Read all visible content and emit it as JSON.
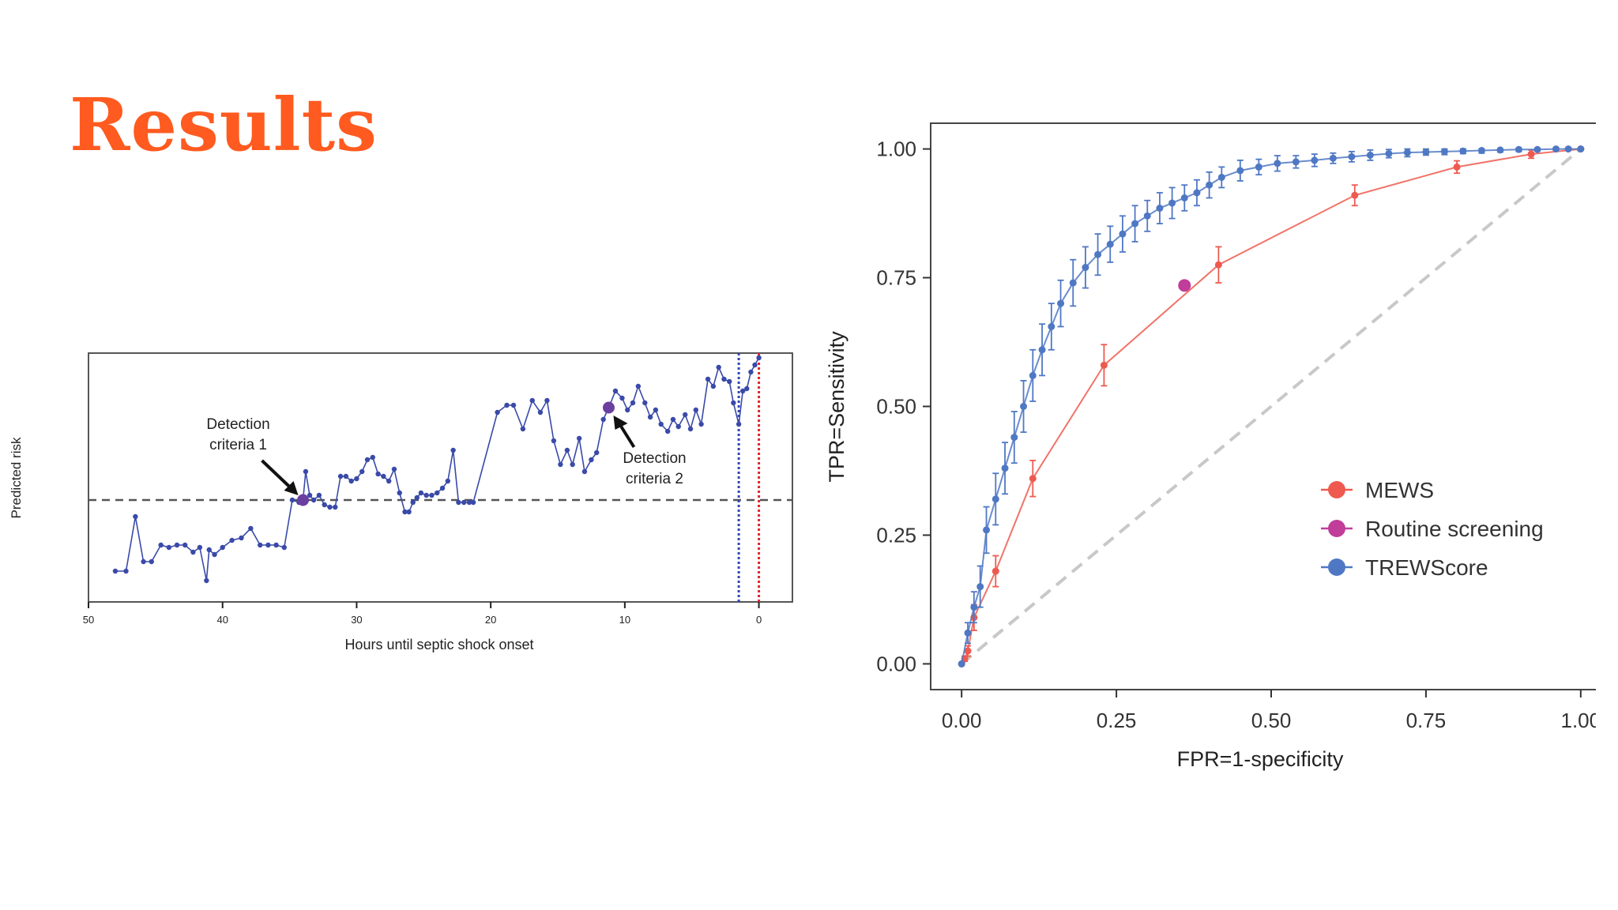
{
  "slide": {
    "title": "Results"
  },
  "colors": {
    "title": "#ff5a1f",
    "risk_line": "#3a4aa8",
    "detection_point": "#6b3fa0",
    "threshold": "#555555",
    "onset_blue": "#2f49b3",
    "onset_red": "#e0262a",
    "mews": "#ee5a4f",
    "routine": "#c13d9a",
    "trews": "#4f78c4",
    "diagonal": "#c8c8c8"
  },
  "chart_data": [
    {
      "type": "line",
      "title": "",
      "xlabel": "Hours until septic shock onset",
      "ylabel": "Predicted risk",
      "xlim": [
        50,
        -2.5
      ],
      "ylim": [
        0,
        1
      ],
      "xticks": [
        50,
        40,
        30,
        20,
        10,
        0
      ],
      "xtick_labels": [
        "50",
        "40",
        "30",
        "20",
        "10",
        "0"
      ],
      "threshold": 0.38,
      "onset_lines": [
        1.5,
        0
      ],
      "annotations": [
        {
          "text_lines": [
            "Detection",
            "criteria 1"
          ],
          "x": 34,
          "y": 0.38
        },
        {
          "text_lines": [
            "Detection",
            "criteria 2"
          ],
          "x": 11.2,
          "y": 0.77
        }
      ],
      "series": [
        {
          "name": "Predicted risk",
          "x": [
            48,
            47.2,
            46.5,
            45.9,
            45.3,
            44.6,
            44.0,
            43.4,
            42.8,
            42.2,
            41.7,
            41.2,
            41.0,
            40.6,
            40.0,
            39.3,
            38.6,
            37.9,
            37.2,
            36.6,
            36.0,
            35.4,
            34.8,
            34.3,
            34.0,
            33.8,
            33.5,
            33.2,
            32.8,
            32.4,
            32.0,
            31.6,
            31.2,
            30.8,
            30.4,
            30.0,
            29.6,
            29.2,
            28.8,
            28.4,
            28.0,
            27.6,
            27.2,
            26.8,
            26.4,
            26.1,
            25.8,
            25.5,
            25.2,
            24.8,
            24.4,
            24.0,
            23.6,
            23.2,
            22.8,
            22.4,
            22.0,
            21.6,
            21.3,
            19.5,
            18.8,
            18.3,
            17.6,
            16.9,
            16.3,
            15.8,
            15.3,
            14.8,
            14.3,
            13.9,
            13.4,
            13.0,
            12.5,
            12.1,
            11.6,
            11.2,
            10.7,
            10.2,
            9.8,
            9.4,
            9.0,
            8.5,
            8.1,
            7.7,
            7.3,
            6.8,
            6.4,
            6.0,
            5.5,
            5.1,
            4.7,
            4.3,
            3.8,
            3.4,
            3.0,
            2.6,
            2.2,
            1.9,
            1.5,
            1.2,
            0.9,
            0.6,
            0.3,
            0.0
          ],
          "y": [
            0.08,
            0.08,
            0.31,
            0.12,
            0.12,
            0.19,
            0.18,
            0.19,
            0.19,
            0.16,
            0.18,
            0.04,
            0.17,
            0.15,
            0.18,
            0.21,
            0.22,
            0.26,
            0.19,
            0.19,
            0.19,
            0.18,
            0.38,
            0.37,
            0.38,
            0.5,
            0.4,
            0.38,
            0.4,
            0.36,
            0.35,
            0.35,
            0.48,
            0.48,
            0.46,
            0.47,
            0.5,
            0.55,
            0.56,
            0.49,
            0.48,
            0.46,
            0.51,
            0.41,
            0.33,
            0.33,
            0.37,
            0.39,
            0.41,
            0.4,
            0.4,
            0.41,
            0.43,
            0.46,
            0.59,
            0.37,
            0.37,
            0.37,
            0.37,
            0.75,
            0.78,
            0.78,
            0.68,
            0.8,
            0.75,
            0.8,
            0.63,
            0.53,
            0.59,
            0.53,
            0.64,
            0.5,
            0.55,
            0.58,
            0.72,
            0.77,
            0.84,
            0.81,
            0.76,
            0.79,
            0.86,
            0.79,
            0.73,
            0.76,
            0.7,
            0.67,
            0.72,
            0.69,
            0.74,
            0.68,
            0.76,
            0.7,
            0.89,
            0.86,
            0.94,
            0.89,
            0.88,
            0.79,
            0.7,
            0.84,
            0.85,
            0.92,
            0.95,
            0.98
          ]
        }
      ],
      "highlights": [
        {
          "x": 34,
          "y": 0.38
        },
        {
          "x": 11.2,
          "y": 0.77
        }
      ]
    },
    {
      "type": "line",
      "title": "",
      "xlabel": "FPR=1-specificity",
      "ylabel": "TPR=Sensitivity",
      "xlim": [
        -0.05,
        1.05
      ],
      "ylim": [
        -0.05,
        1.05
      ],
      "xticks": [
        0,
        0.25,
        0.5,
        0.75,
        1
      ],
      "yticks": [
        0,
        0.25,
        0.5,
        0.75,
        1
      ],
      "xtick_labels": [
        "0.00",
        "0.25",
        "0.50",
        "0.75",
        "1.00"
      ],
      "ytick_labels": [
        "0.00",
        "0.25",
        "0.50",
        "0.75",
        "1.00"
      ],
      "legend_position": "bottom-right",
      "legend": [
        "MEWS",
        "Routine screening",
        "TREWScore"
      ],
      "diagonal": [
        [
          0,
          0
        ],
        [
          1,
          1
        ]
      ],
      "series": [
        {
          "name": "MEWS",
          "x": [
            0,
            0.005,
            0.01,
            0.02,
            0.055,
            0.115,
            0.23,
            0.415,
            0.635,
            0.8,
            0.92,
            1.0
          ],
          "y": [
            0,
            0.01,
            0.025,
            0.09,
            0.18,
            0.36,
            0.58,
            0.775,
            0.91,
            0.965,
            0.99,
            1.0
          ],
          "err": [
            0,
            0.005,
            0.01,
            0.025,
            0.03,
            0.035,
            0.04,
            0.035,
            0.02,
            0.012,
            0.008,
            0
          ]
        },
        {
          "name": "Routine screening",
          "x": [
            0.36
          ],
          "y": [
            0.735
          ]
        },
        {
          "name": "TREWScore",
          "x": [
            0,
            0.01,
            0.02,
            0.03,
            0.04,
            0.055,
            0.07,
            0.085,
            0.1,
            0.115,
            0.13,
            0.145,
            0.16,
            0.18,
            0.2,
            0.22,
            0.24,
            0.26,
            0.28,
            0.3,
            0.32,
            0.34,
            0.36,
            0.38,
            0.4,
            0.42,
            0.45,
            0.48,
            0.51,
            0.54,
            0.57,
            0.6,
            0.63,
            0.66,
            0.69,
            0.72,
            0.75,
            0.78,
            0.81,
            0.84,
            0.87,
            0.9,
            0.93,
            0.96,
            0.98,
            1.0
          ],
          "y": [
            0,
            0.06,
            0.11,
            0.15,
            0.26,
            0.32,
            0.38,
            0.44,
            0.5,
            0.56,
            0.61,
            0.655,
            0.7,
            0.74,
            0.77,
            0.795,
            0.815,
            0.835,
            0.855,
            0.87,
            0.885,
            0.895,
            0.905,
            0.915,
            0.93,
            0.945,
            0.958,
            0.965,
            0.972,
            0.975,
            0.978,
            0.982,
            0.985,
            0.988,
            0.991,
            0.993,
            0.994,
            0.995,
            0.996,
            0.997,
            0.998,
            0.999,
            0.999,
            1.0,
            1.0,
            1.0
          ],
          "err": [
            0,
            0.02,
            0.03,
            0.04,
            0.045,
            0.05,
            0.05,
            0.05,
            0.05,
            0.05,
            0.05,
            0.045,
            0.045,
            0.045,
            0.04,
            0.04,
            0.035,
            0.035,
            0.035,
            0.03,
            0.03,
            0.03,
            0.025,
            0.025,
            0.025,
            0.02,
            0.02,
            0.015,
            0.015,
            0.012,
            0.012,
            0.01,
            0.01,
            0.01,
            0.008,
            0.008,
            0.006,
            0.006,
            0.005,
            0.005,
            0.004,
            0.004,
            0.003,
            0.002,
            0.001,
            0
          ]
        }
      ]
    }
  ]
}
